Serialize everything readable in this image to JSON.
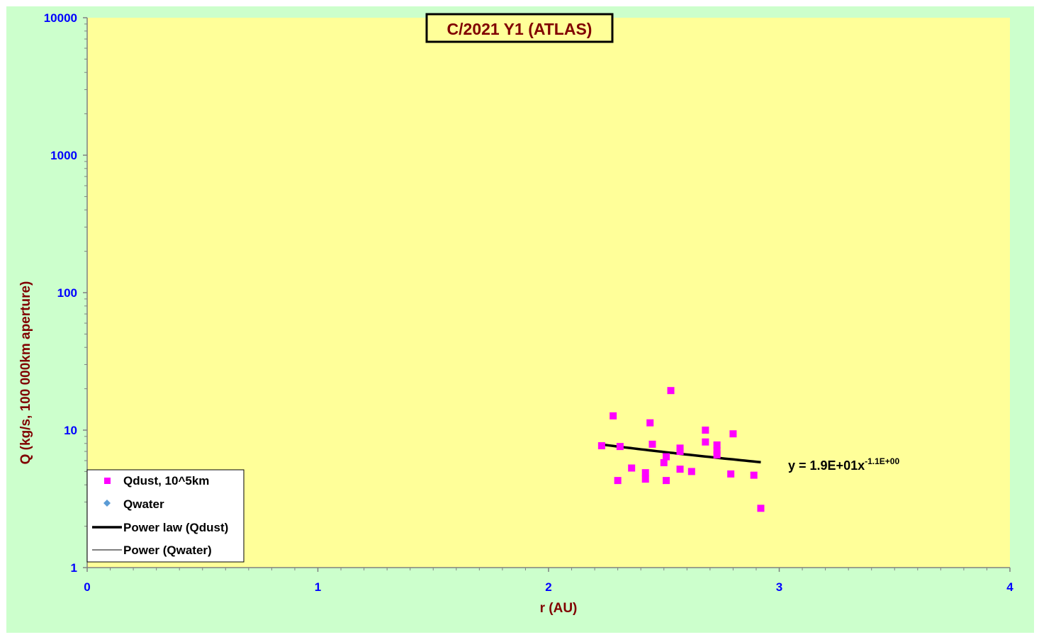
{
  "chart_data": {
    "type": "scatter",
    "title": "C/2021 Y1 (ATLAS)",
    "xlabel": "r (AU)",
    "ylabel": "Q (kg/s, 100 000km aperture)",
    "xlim": [
      0,
      4
    ],
    "ylim": [
      1,
      10000
    ],
    "yscale": "log",
    "xticks": [
      "0",
      "1",
      "2",
      "3",
      "4"
    ],
    "yticks": [
      "1",
      "10",
      "100",
      "1000",
      "10000"
    ],
    "grid": false,
    "legend_position": "bottom-left",
    "series": [
      {
        "name": "Qdust, 10^5km",
        "kind": "points",
        "marker": "square",
        "color": "#ff00ff",
        "points": [
          {
            "x": 2.23,
            "y": 7.7
          },
          {
            "x": 2.28,
            "y": 12.7
          },
          {
            "x": 2.3,
            "y": 4.3
          },
          {
            "x": 2.31,
            "y": 7.6
          },
          {
            "x": 2.36,
            "y": 5.3
          },
          {
            "x": 2.42,
            "y": 4.9
          },
          {
            "x": 2.42,
            "y": 4.4
          },
          {
            "x": 2.44,
            "y": 11.3
          },
          {
            "x": 2.45,
            "y": 7.9
          },
          {
            "x": 2.5,
            "y": 5.8
          },
          {
            "x": 2.51,
            "y": 4.3
          },
          {
            "x": 2.51,
            "y": 6.4
          },
          {
            "x": 2.53,
            "y": 19.4
          },
          {
            "x": 2.57,
            "y": 5.2
          },
          {
            "x": 2.57,
            "y": 7.4
          },
          {
            "x": 2.57,
            "y": 7.0
          },
          {
            "x": 2.62,
            "y": 5.0
          },
          {
            "x": 2.68,
            "y": 10.0
          },
          {
            "x": 2.68,
            "y": 8.2
          },
          {
            "x": 2.73,
            "y": 7.8
          },
          {
            "x": 2.73,
            "y": 7.1
          },
          {
            "x": 2.73,
            "y": 6.6
          },
          {
            "x": 2.79,
            "y": 4.8
          },
          {
            "x": 2.8,
            "y": 9.4
          },
          {
            "x": 2.89,
            "y": 4.7
          },
          {
            "x": 2.92,
            "y": 2.7
          }
        ]
      },
      {
        "name": "Qwater",
        "kind": "points",
        "marker": "diamond",
        "color": "#5b9bd5",
        "points": []
      },
      {
        "name": "Power law (Qdust)",
        "kind": "trendline",
        "color": "#000000",
        "line_width": "thick",
        "coefficient": 19,
        "exponent": -1.1,
        "x_range": [
          2.23,
          2.92
        ]
      },
      {
        "name": "Power (Qwater)",
        "kind": "trendline",
        "color": "#000000",
        "line_width": "thin",
        "points": []
      }
    ],
    "annotations": [
      {
        "text_main": "y = 1.9E+01x",
        "text_sup": "-1.1E+00"
      }
    ]
  },
  "colors": {
    "outer_background": "#ccffcc",
    "plot_background": "#ffff99",
    "title_text": "#800000",
    "title_box_background": "#ffff99",
    "axis_label_text": "#800000",
    "tick_label_text": "#0000ff",
    "axis_line": "#808080"
  }
}
